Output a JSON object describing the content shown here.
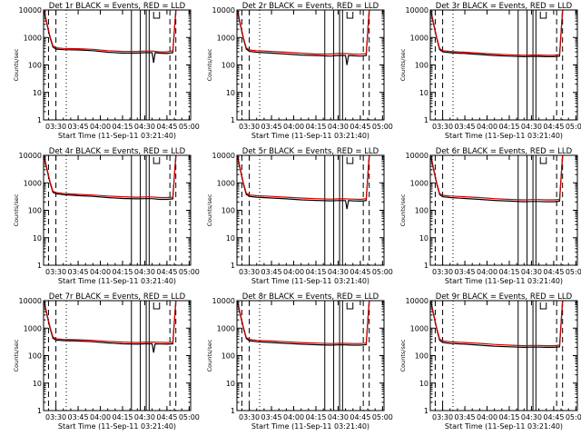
{
  "figure": {
    "panel_colors": {
      "events": "#000000",
      "lld": "#d40000",
      "marker": "#000000",
      "background": "#ffffff"
    }
  },
  "chart_data": [
    {
      "type": "line",
      "title": "Det 1r BLACK = Events, RED = LLD",
      "xlabel": "Start Time (11-Sep-11 03:21:40)",
      "ylabel": "Counts/sec",
      "xticks": [
        "03:30",
        "03:45",
        "04:00",
        "04:15",
        "04:30",
        "04:45",
        "05:00"
      ],
      "yticks": [
        "1",
        "10",
        "100",
        "1000",
        "10000"
      ],
      "ylim": [
        1,
        10000
      ],
      "yscale": "log",
      "series": [
        {
          "name": "Events",
          "x": [
            "03:22",
            "03:23",
            "03:26",
            "03:28",
            "03:30",
            "03:35",
            "03:45",
            "03:55",
            "04:05",
            "04:15",
            "04:25",
            "04:30",
            "04:35",
            "04:36",
            "04:37",
            "04:40",
            "04:45",
            "04:49",
            "04:51"
          ],
          "values": [
            10000,
            5000,
            1000,
            450,
            380,
            360,
            350,
            330,
            290,
            270,
            270,
            280,
            280,
            120,
            280,
            270,
            260,
            280,
            10000
          ]
        },
        {
          "name": "LLD",
          "x": [
            "03:22",
            "03:23",
            "03:26",
            "03:28",
            "03:30",
            "03:35",
            "03:45",
            "03:55",
            "04:05",
            "04:15",
            "04:25",
            "04:30",
            "04:35",
            "04:40",
            "04:45",
            "04:49",
            "04:51"
          ],
          "values": [
            10000,
            5500,
            1100,
            500,
            420,
            400,
            390,
            370,
            330,
            310,
            310,
            320,
            320,
            300,
            300,
            330,
            10000
          ]
        }
      ]
    },
    {
      "type": "line",
      "title": "Det 2r BLACK = Events, RED = LLD",
      "xlabel": "Start Time (11-Sep-11 03:21:40)",
      "ylabel": "Counts/sec",
      "xticks": [
        "03:30",
        "03:45",
        "04:00",
        "04:15",
        "04:30",
        "04:45",
        "05:00"
      ],
      "yticks": [
        "1",
        "10",
        "100",
        "1000",
        "10000"
      ],
      "ylim": [
        1,
        10000
      ],
      "yscale": "log",
      "series": [
        {
          "name": "Events",
          "x": [
            "03:22",
            "03:23",
            "03:26",
            "03:28",
            "03:30",
            "03:35",
            "03:45",
            "03:55",
            "04:05",
            "04:15",
            "04:25",
            "04:30",
            "04:35",
            "04:36",
            "04:37",
            "04:40",
            "04:45",
            "04:49",
            "04:51"
          ],
          "values": [
            10000,
            5000,
            900,
            380,
            310,
            290,
            270,
            250,
            230,
            220,
            210,
            220,
            220,
            100,
            220,
            215,
            210,
            220,
            10000
          ]
        },
        {
          "name": "LLD",
          "x": [
            "03:22",
            "03:23",
            "03:26",
            "03:28",
            "03:30",
            "03:35",
            "03:45",
            "03:55",
            "04:05",
            "04:15",
            "04:25",
            "04:30",
            "04:35",
            "04:40",
            "04:45",
            "04:49",
            "04:51"
          ],
          "values": [
            10000,
            5500,
            1000,
            420,
            350,
            330,
            310,
            290,
            270,
            250,
            250,
            260,
            260,
            250,
            245,
            260,
            10000
          ]
        }
      ]
    },
    {
      "type": "line",
      "title": "Det 3r BLACK = Events, RED = LLD",
      "xlabel": "Start Time (11-Sep-11 03:21:40)",
      "ylabel": "Counts/sec",
      "xticks": [
        "03:30",
        "03:45",
        "04:00",
        "04:15",
        "04:30",
        "04:45",
        "05:00"
      ],
      "yticks": [
        "1",
        "10",
        "100",
        "1000",
        "10000"
      ],
      "ylim": [
        1,
        10000
      ],
      "yscale": "log",
      "series": [
        {
          "name": "Events",
          "x": [
            "03:22",
            "03:23",
            "03:26",
            "03:28",
            "03:30",
            "03:35",
            "03:45",
            "03:55",
            "04:05",
            "04:15",
            "04:25",
            "04:30",
            "04:35",
            "04:40",
            "04:45",
            "04:49",
            "04:51"
          ],
          "values": [
            10000,
            5000,
            900,
            360,
            300,
            280,
            260,
            240,
            220,
            210,
            200,
            205,
            205,
            200,
            200,
            210,
            10000
          ]
        },
        {
          "name": "LLD",
          "x": [
            "03:22",
            "03:23",
            "03:26",
            "03:28",
            "03:30",
            "03:35",
            "03:45",
            "03:55",
            "04:05",
            "04:15",
            "04:25",
            "04:30",
            "04:35",
            "04:40",
            "04:45",
            "04:49",
            "04:51"
          ],
          "values": [
            10000,
            5500,
            1000,
            400,
            330,
            310,
            290,
            270,
            250,
            235,
            225,
            230,
            230,
            225,
            225,
            240,
            10000
          ]
        }
      ]
    },
    {
      "type": "line",
      "title": "Det 4r BLACK = Events, RED = LLD",
      "xlabel": "Start Time (11-Sep-11 03:21:40)",
      "ylabel": "Counts/sec",
      "xticks": [
        "03:30",
        "03:45",
        "04:00",
        "04:15",
        "04:30",
        "04:45",
        "05:00"
      ],
      "yticks": [
        "1",
        "10",
        "100",
        "1000",
        "10000"
      ],
      "ylim": [
        1,
        10000
      ],
      "yscale": "log",
      "series": [
        {
          "name": "Events",
          "x": [
            "03:22",
            "03:23",
            "03:26",
            "03:28",
            "03:30",
            "03:35",
            "03:45",
            "03:55",
            "04:05",
            "04:15",
            "04:25",
            "04:30",
            "04:35",
            "04:40",
            "04:45",
            "04:49",
            "04:51"
          ],
          "values": [
            10000,
            5000,
            1000,
            450,
            400,
            370,
            340,
            320,
            290,
            270,
            260,
            265,
            265,
            250,
            250,
            260,
            10000
          ]
        },
        {
          "name": "LLD",
          "x": [
            "03:22",
            "03:23",
            "03:26",
            "03:28",
            "03:30",
            "03:35",
            "03:45",
            "03:55",
            "04:05",
            "04:15",
            "04:25",
            "04:30",
            "04:35",
            "04:40",
            "04:45",
            "04:49",
            "04:51"
          ],
          "values": [
            10000,
            5500,
            1100,
            500,
            440,
            410,
            380,
            360,
            330,
            310,
            300,
            305,
            305,
            290,
            290,
            300,
            10000
          ]
        }
      ]
    },
    {
      "type": "line",
      "title": "Det 5r BLACK = Events, RED = LLD",
      "xlabel": "Start Time (11-Sep-11 03:21:40)",
      "ylabel": "Counts/sec",
      "xticks": [
        "03:30",
        "03:45",
        "04:00",
        "04:15",
        "04:30",
        "04:45",
        "05:00"
      ],
      "yticks": [
        "1",
        "10",
        "100",
        "1000",
        "10000"
      ],
      "ylim": [
        1,
        10000
      ],
      "yscale": "log",
      "series": [
        {
          "name": "Events",
          "x": [
            "03:22",
            "03:23",
            "03:26",
            "03:28",
            "03:30",
            "03:35",
            "03:45",
            "03:55",
            "04:05",
            "04:15",
            "04:25",
            "04:30",
            "04:35",
            "04:36",
            "04:37",
            "04:40",
            "04:45",
            "04:49",
            "04:51"
          ],
          "values": [
            10000,
            5000,
            900,
            380,
            320,
            300,
            280,
            260,
            240,
            230,
            220,
            225,
            225,
            110,
            225,
            220,
            215,
            225,
            10000
          ]
        },
        {
          "name": "LLD",
          "x": [
            "03:22",
            "03:23",
            "03:26",
            "03:28",
            "03:30",
            "03:35",
            "03:45",
            "03:55",
            "04:05",
            "04:15",
            "04:25",
            "04:30",
            "04:35",
            "04:40",
            "04:45",
            "04:49",
            "04:51"
          ],
          "values": [
            10000,
            5500,
            1000,
            420,
            360,
            340,
            320,
            300,
            280,
            265,
            255,
            260,
            260,
            255,
            250,
            265,
            10000
          ]
        }
      ]
    },
    {
      "type": "line",
      "title": "Det 6r BLACK = Events, RED = LLD",
      "xlabel": "Start Time (11-Sep-11 03:21:40)",
      "ylabel": "Counts/sec",
      "xticks": [
        "03:30",
        "03:45",
        "04:00",
        "04:15",
        "04:30",
        "04:45",
        "05:00"
      ],
      "yticks": [
        "1",
        "10",
        "100",
        "1000",
        "10000"
      ],
      "ylim": [
        1,
        10000
      ],
      "yscale": "log",
      "series": [
        {
          "name": "Events",
          "x": [
            "03:22",
            "03:23",
            "03:26",
            "03:28",
            "03:30",
            "03:35",
            "03:45",
            "03:55",
            "04:05",
            "04:15",
            "04:25",
            "04:30",
            "04:35",
            "04:40",
            "04:45",
            "04:49",
            "04:51"
          ],
          "values": [
            10000,
            5000,
            900,
            370,
            310,
            290,
            270,
            250,
            230,
            215,
            205,
            210,
            210,
            205,
            205,
            215,
            10000
          ]
        },
        {
          "name": "LLD",
          "x": [
            "03:22",
            "03:23",
            "03:26",
            "03:28",
            "03:30",
            "03:35",
            "03:45",
            "03:55",
            "04:05",
            "04:15",
            "04:25",
            "04:30",
            "04:35",
            "04:40",
            "04:45",
            "04:49",
            "04:51"
          ],
          "values": [
            10000,
            5500,
            1000,
            410,
            350,
            330,
            310,
            290,
            265,
            250,
            240,
            245,
            245,
            240,
            240,
            250,
            10000
          ]
        }
      ]
    },
    {
      "type": "line",
      "title": "Det 7r BLACK = Events, RED = LLD",
      "xlabel": "Start Time (11-Sep-11 03:21:40)",
      "ylabel": "Counts/sec",
      "xticks": [
        "03:30",
        "03:45",
        "04:00",
        "04:15",
        "04:30",
        "04:45",
        "05:00"
      ],
      "yticks": [
        "1",
        "10",
        "100",
        "1000",
        "10000"
      ],
      "ylim": [
        1,
        10000
      ],
      "yscale": "log",
      "series": [
        {
          "name": "Events",
          "x": [
            "03:22",
            "03:23",
            "03:26",
            "03:28",
            "03:30",
            "03:35",
            "03:45",
            "03:55",
            "04:05",
            "04:15",
            "04:25",
            "04:30",
            "04:35",
            "04:36",
            "04:37",
            "04:40",
            "04:45",
            "04:49",
            "04:51"
          ],
          "values": [
            10000,
            5000,
            1000,
            430,
            370,
            350,
            340,
            320,
            290,
            270,
            260,
            270,
            270,
            130,
            270,
            265,
            260,
            270,
            10000
          ]
        },
        {
          "name": "LLD",
          "x": [
            "03:22",
            "03:23",
            "03:26",
            "03:28",
            "03:30",
            "03:35",
            "03:45",
            "03:55",
            "04:05",
            "04:15",
            "04:25",
            "04:30",
            "04:35",
            "04:40",
            "04:45",
            "04:49",
            "04:51"
          ],
          "values": [
            10000,
            5500,
            1100,
            480,
            410,
            390,
            380,
            360,
            330,
            310,
            300,
            310,
            310,
            305,
            300,
            310,
            10000
          ]
        }
      ]
    },
    {
      "type": "line",
      "title": "Det 8r BLACK = Events, RED = LLD",
      "xlabel": "Start Time (11-Sep-11 03:21:40)",
      "ylabel": "Counts/sec",
      "xticks": [
        "03:30",
        "03:45",
        "04:00",
        "04:15",
        "04:30",
        "04:45",
        "05:00"
      ],
      "yticks": [
        "1",
        "10",
        "100",
        "1000",
        "10000"
      ],
      "ylim": [
        1,
        10000
      ],
      "yscale": "log",
      "series": [
        {
          "name": "Events",
          "x": [
            "03:22",
            "03:23",
            "03:26",
            "03:28",
            "03:30",
            "03:35",
            "03:45",
            "03:55",
            "04:05",
            "04:15",
            "04:25",
            "04:30",
            "04:35",
            "04:40",
            "04:45",
            "04:49",
            "04:51"
          ],
          "values": [
            10000,
            5000,
            1000,
            420,
            350,
            320,
            300,
            280,
            260,
            250,
            240,
            245,
            245,
            240,
            240,
            250,
            10000
          ]
        },
        {
          "name": "LLD",
          "x": [
            "03:22",
            "03:23",
            "03:26",
            "03:28",
            "03:30",
            "03:35",
            "03:45",
            "03:55",
            "04:05",
            "04:15",
            "04:25",
            "04:30",
            "04:35",
            "04:40",
            "04:45",
            "04:49",
            "04:51"
          ],
          "values": [
            10000,
            5500,
            1100,
            460,
            390,
            360,
            340,
            320,
            300,
            285,
            275,
            280,
            280,
            275,
            275,
            285,
            10000
          ]
        }
      ]
    },
    {
      "type": "line",
      "title": "Det 9r BLACK = Events, RED = LLD",
      "xlabel": "Start Time (11-Sep-11 03:21:40)",
      "ylabel": "Counts/sec",
      "xticks": [
        "03:30",
        "03:45",
        "04:00",
        "04:15",
        "04:30",
        "04:45",
        "05:00"
      ],
      "yticks": [
        "1",
        "10",
        "100",
        "1000",
        "10000"
      ],
      "ylim": [
        1,
        10000
      ],
      "yscale": "log",
      "series": [
        {
          "name": "Events",
          "x": [
            "03:22",
            "03:23",
            "03:26",
            "03:28",
            "03:30",
            "03:35",
            "03:45",
            "03:55",
            "04:05",
            "04:15",
            "04:25",
            "04:30",
            "04:35",
            "04:40",
            "04:45",
            "04:49",
            "04:51"
          ],
          "values": [
            10000,
            5000,
            900,
            360,
            300,
            280,
            260,
            240,
            220,
            210,
            200,
            205,
            205,
            200,
            200,
            210,
            10000
          ]
        },
        {
          "name": "LLD",
          "x": [
            "03:22",
            "03:23",
            "03:26",
            "03:28",
            "03:30",
            "03:35",
            "03:45",
            "03:55",
            "04:05",
            "04:15",
            "04:25",
            "04:30",
            "04:35",
            "04:40",
            "04:45",
            "04:49",
            "04:51"
          ],
          "values": [
            10000,
            5500,
            1000,
            400,
            340,
            320,
            300,
            280,
            255,
            240,
            230,
            235,
            235,
            230,
            230,
            240,
            10000
          ]
        }
      ]
    }
  ]
}
